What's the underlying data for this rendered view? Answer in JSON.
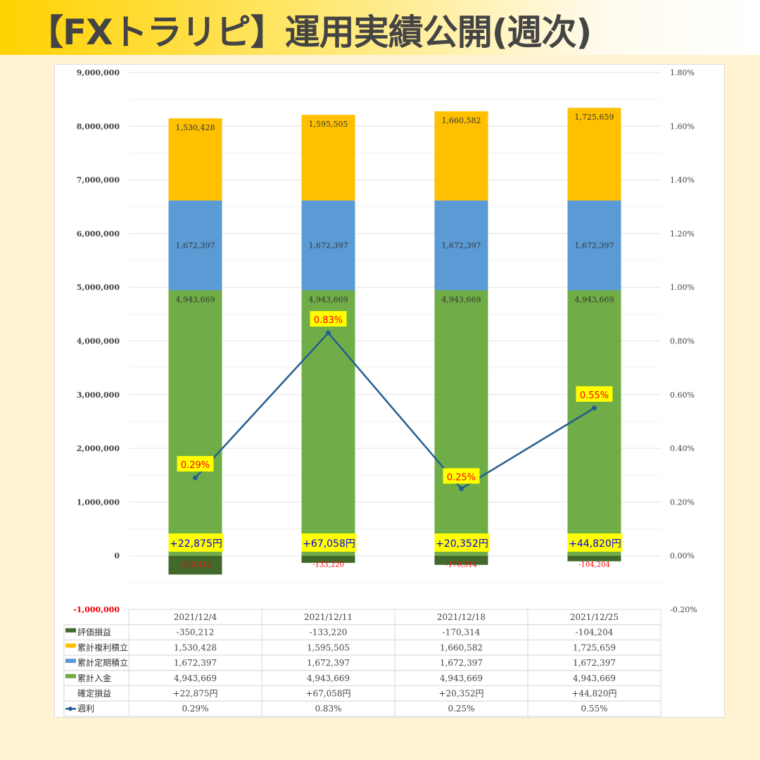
{
  "title": "【FXトラリピ】運用実績公開(週次)",
  "chart_data": {
    "type": "bar",
    "categories": [
      "2021/12/4",
      "2021/12/11",
      "2021/12/18",
      "2021/12/25"
    ],
    "series": [
      {
        "name": "評価損益",
        "color": "#43682B",
        "values": [
          -350212,
          -133220,
          -170314,
          -104204
        ],
        "labels": [
          "-350,212",
          "-133,220",
          "-170,314",
          "-104,204"
        ]
      },
      {
        "name": "累計入金",
        "color": "#70AD47",
        "values": [
          4943669,
          4943669,
          4943669,
          4943669
        ],
        "labels": [
          "4,943,669",
          "4,943,669",
          "4,943,669",
          "4,943,669"
        ]
      },
      {
        "name": "累計定期積立",
        "color": "#5B9BD5",
        "values": [
          1672397,
          1672397,
          1672397,
          1672397
        ],
        "labels": [
          "1,672,397",
          "1,672,397",
          "1,672,397",
          "1,672,397"
        ]
      },
      {
        "name": "累計複利積立",
        "color": "#FFC000",
        "values": [
          1530428,
          1595505,
          1660582,
          1725659
        ],
        "labels": [
          "1,530,428",
          "1,595,505",
          "1,660,582",
          "1,725,659"
        ]
      }
    ],
    "realized": {
      "name": "確定損益",
      "values": [
        22875,
        67058,
        20352,
        44820
      ],
      "labels": [
        "+22,875円",
        "+67,058円",
        "+20,352円",
        "+44,820円"
      ]
    },
    "line": {
      "name": "週利",
      "color": "#255E91",
      "values": [
        0.29,
        0.83,
        0.25,
        0.55
      ],
      "labels": [
        "0.29%",
        "0.83%",
        "0.25%",
        "0.55%"
      ]
    },
    "ylim": [
      -1000000,
      9000000
    ],
    "y2lim": [
      -0.2,
      1.8
    ],
    "yticks": [
      "9,000,000",
      "8,000,000",
      "7,000,000",
      "6,000,000",
      "5,000,000",
      "4,000,000",
      "3,000,000",
      "2,000,000",
      "1,000,000",
      "0",
      "-1,000,000"
    ],
    "y2ticks": [
      "1.80%",
      "1.60%",
      "1.40%",
      "1.20%",
      "1.00%",
      "0.80%",
      "0.60%",
      "0.40%",
      "0.20%",
      "0.00%",
      "-0.20%"
    ],
    "table_rows": [
      {
        "name": "評価損益",
        "cells": [
          "-350,212",
          "-133,220",
          "-170,314",
          "-104,204"
        ]
      },
      {
        "name": "累計複利積立",
        "cells": [
          "1,530,428",
          "1,595,505",
          "1,660,582",
          "1,725,659"
        ]
      },
      {
        "name": "累計定期積立",
        "cells": [
          "1,672,397",
          "1,672,397",
          "1,672,397",
          "1,672,397"
        ]
      },
      {
        "name": "累計入金",
        "cells": [
          "4,943,669",
          "4,943,669",
          "4,943,669",
          "4,943,669"
        ]
      },
      {
        "name": "確定損益",
        "cells": [
          "+22,875円",
          "+67,058円",
          "+20,352円",
          "+44,820円"
        ]
      },
      {
        "name": "週利",
        "cells": [
          "0.29%",
          "0.83%",
          "0.25%",
          "0.55%"
        ]
      }
    ]
  }
}
